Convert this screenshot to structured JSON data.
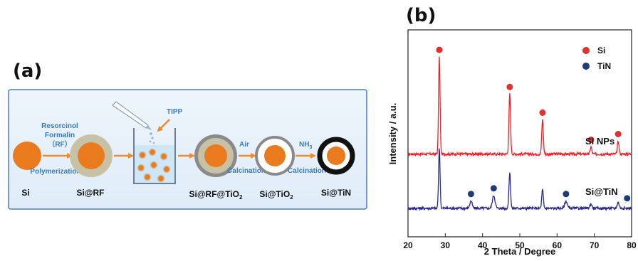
{
  "panel_a": {
    "label": "(a)",
    "steps": {
      "resorcinol": "Resorcinol",
      "formalin": "Formalin",
      "rf": "（RF）",
      "polymerization": "Polymerization",
      "tipp": "TIPP",
      "air": "Air",
      "calcination1": "Calcination",
      "nh3_main": "NH",
      "nh3_sub": "3",
      "calcination2": "Calcination"
    },
    "names": {
      "si": "Si",
      "si_rf": "Si@RF",
      "si_rf_tio2_main": "Si@RF@TiO",
      "si_rf_tio2_sub": "2",
      "si_tio2_main": "Si@TiO",
      "si_tio2_sub": "2",
      "si_tin": "Si@TiN"
    },
    "colors": {
      "core": "#ea7a1e",
      "rf_shell": "#c7c2a6",
      "tio2_shell": "#8a8a8a",
      "tin_shell": "#111111",
      "arrow": "#f08a2a",
      "liquid": "#cfe6f7",
      "background": "#eaf3fb",
      "border": "#4a7db8"
    }
  },
  "panel_b": {
    "label": "(b)",
    "chart_data": {
      "type": "line",
      "xlabel": "2 Theta / Degree",
      "ylabel": "Intensity / a.u.",
      "xlim": [
        20,
        80
      ],
      "xticks": [
        "20",
        "30",
        "40",
        "50",
        "60",
        "70",
        "80"
      ],
      "legend": {
        "placement": "top-right",
        "entries": [
          {
            "name": "Si",
            "color": "#e03030"
          },
          {
            "name": "TiN",
            "color": "#1f3a7a"
          }
        ]
      },
      "series": [
        {
          "name": "Si NPs",
          "color": "#e8232a",
          "baseline": 0.58,
          "peaks": [
            {
              "x": 28.4,
              "h": 0.68,
              "w": 0.28
            },
            {
              "x": 47.3,
              "h": 0.42,
              "w": 0.3
            },
            {
              "x": 56.1,
              "h": 0.24,
              "w": 0.3
            },
            {
              "x": 69.1,
              "h": 0.05,
              "w": 0.3
            },
            {
              "x": 76.4,
              "h": 0.09,
              "w": 0.3
            }
          ]
        },
        {
          "name": "Si@TiN",
          "color": "#2b2b8a",
          "baseline": 0.2,
          "peaks": [
            {
              "x": 28.4,
              "h": 0.42,
              "w": 0.28
            },
            {
              "x": 36.9,
              "h": 0.05,
              "w": 0.45
            },
            {
              "x": 43.0,
              "h": 0.09,
              "w": 0.5
            },
            {
              "x": 47.3,
              "h": 0.25,
              "w": 0.3
            },
            {
              "x": 56.1,
              "h": 0.13,
              "w": 0.3
            },
            {
              "x": 62.4,
              "h": 0.05,
              "w": 0.5
            },
            {
              "x": 69.1,
              "h": 0.03,
              "w": 0.4
            },
            {
              "x": 76.4,
              "h": 0.04,
              "w": 0.4
            }
          ]
        }
      ],
      "markers": [
        {
          "type": "Si",
          "x": 28.4,
          "y": 1.31
        },
        {
          "type": "Si",
          "x": 47.3,
          "y": 1.05
        },
        {
          "type": "Si",
          "x": 56.1,
          "y": 0.87
        },
        {
          "type": "Si",
          "x": 69.1,
          "y": 0.68
        },
        {
          "type": "Si",
          "x": 76.4,
          "y": 0.72
        },
        {
          "type": "TiN",
          "x": 36.9,
          "y": 0.3
        },
        {
          "type": "TiN",
          "x": 43.0,
          "y": 0.34
        },
        {
          "type": "TiN",
          "x": 62.4,
          "y": 0.3
        },
        {
          "type": "TiN",
          "x": 78.8,
          "y": 0.27
        }
      ]
    }
  }
}
